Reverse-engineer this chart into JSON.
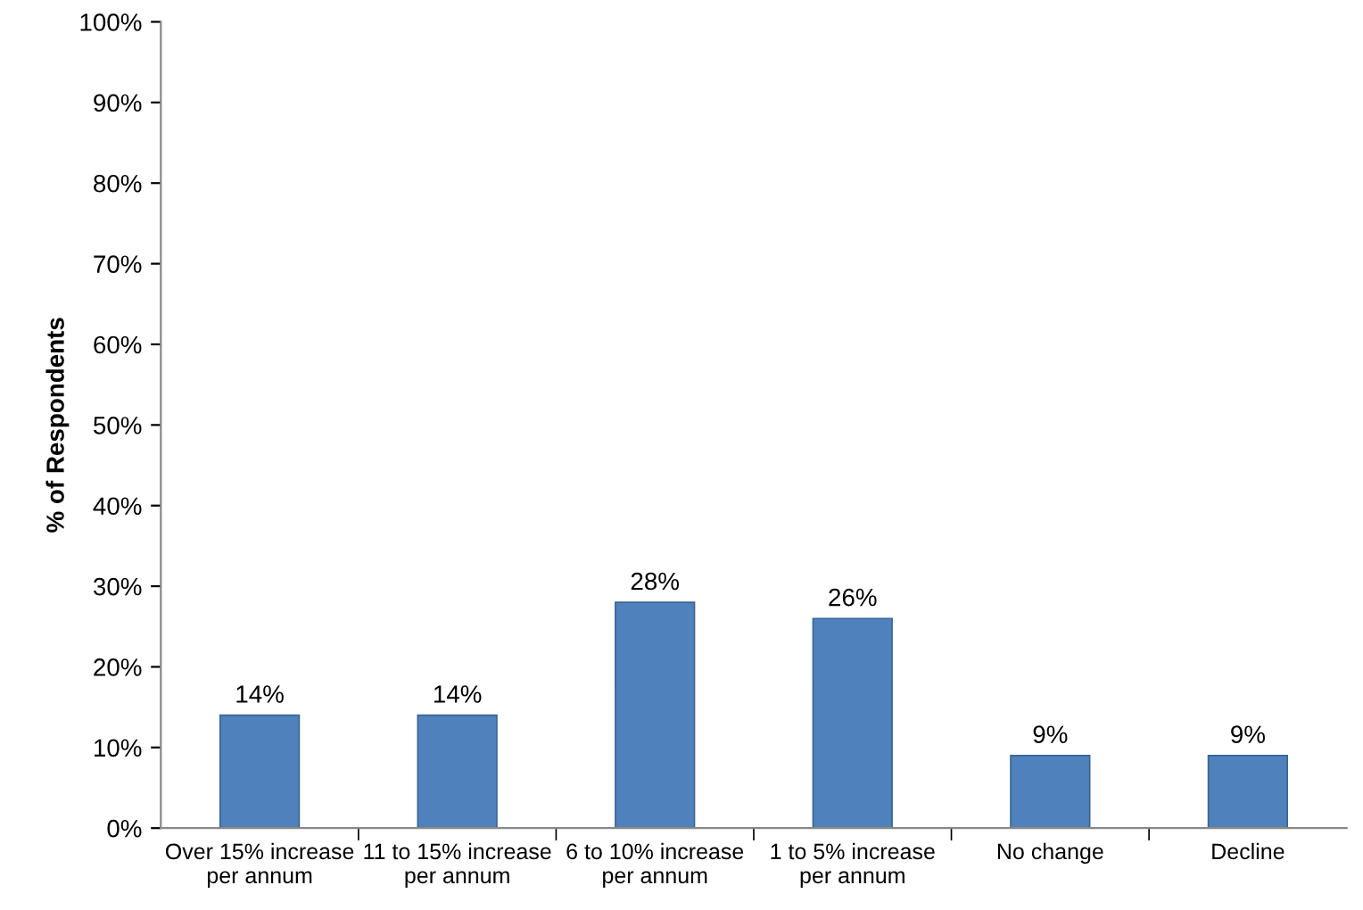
{
  "chart_data": {
    "type": "bar",
    "ylabel": "% of Respondents",
    "categories": [
      "Over 15% increase\nper annum",
      "11 to 15% increase\nper annum",
      "6 to 10% increase\nper annum",
      "1 to 5% increase\nper annum",
      "No change",
      "Decline"
    ],
    "values": [
      14,
      14,
      28,
      26,
      9,
      9
    ],
    "color": "#4f81bd",
    "value_labels": [
      "14%",
      "14%",
      "28%",
      "26%",
      "9%",
      "9%"
    ],
    "ylim": [
      0,
      100
    ],
    "yticks": [
      {
        "value": 0,
        "label": "0%"
      },
      {
        "value": 10,
        "label": "10%"
      },
      {
        "value": 20,
        "label": "20%"
      },
      {
        "value": 30,
        "label": "30%"
      },
      {
        "value": 40,
        "label": "40%"
      },
      {
        "value": 50,
        "label": "50%"
      },
      {
        "value": 60,
        "label": "60%"
      },
      {
        "value": 70,
        "label": "70%"
      },
      {
        "value": 80,
        "label": "80%"
      },
      {
        "value": 90,
        "label": "90%"
      },
      {
        "value": 100,
        "label": "100%"
      }
    ],
    "grid": false,
    "legend": false
  }
}
